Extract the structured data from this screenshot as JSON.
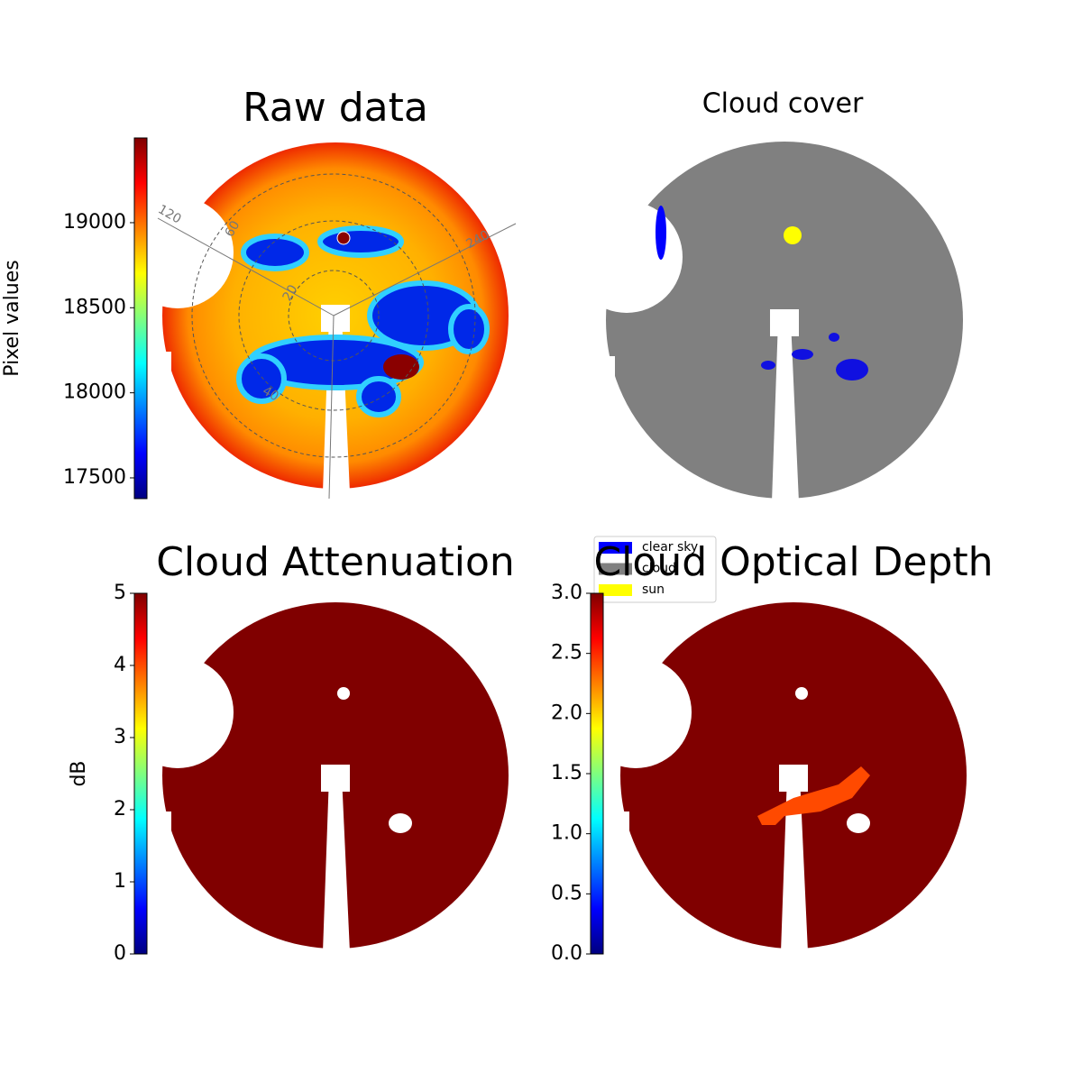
{
  "chart_data": [
    {
      "type": "image",
      "title": "Raw data",
      "colorbar_label": "Pixel values",
      "ylim": [
        17378,
        19498
      ],
      "yticks": [
        17500,
        18000,
        18500,
        19000
      ],
      "annotations": [
        "120",
        "240",
        "20",
        "40",
        "60"
      ]
    },
    {
      "type": "image",
      "title": "Cloud cover",
      "legend": [
        {
          "name": "clear sky",
          "color": "#0000ff"
        },
        {
          "name": "cloud",
          "color": "#808080"
        },
        {
          "name": "sun",
          "color": "#ffff00"
        }
      ]
    },
    {
      "type": "image",
      "title": "Cloud Attenuation",
      "colorbar_label": "dB",
      "ylim": [
        0,
        5
      ],
      "yticks": [
        0,
        1,
        2,
        3,
        4,
        5
      ]
    },
    {
      "type": "image",
      "title": "Cloud Optical Depth",
      "ylim": [
        0,
        3
      ],
      "yticks": [
        {
          "value": 0,
          "label": "0.0"
        },
        {
          "value": 0.5,
          "label": "0.5"
        },
        {
          "value": 1,
          "label": "1.0"
        },
        {
          "value": 1.5,
          "label": "1.5"
        },
        {
          "value": 2,
          "label": "2.0"
        },
        {
          "value": 2.5,
          "label": "2.5"
        },
        {
          "value": 3,
          "label": "3.0"
        }
      ]
    }
  ]
}
